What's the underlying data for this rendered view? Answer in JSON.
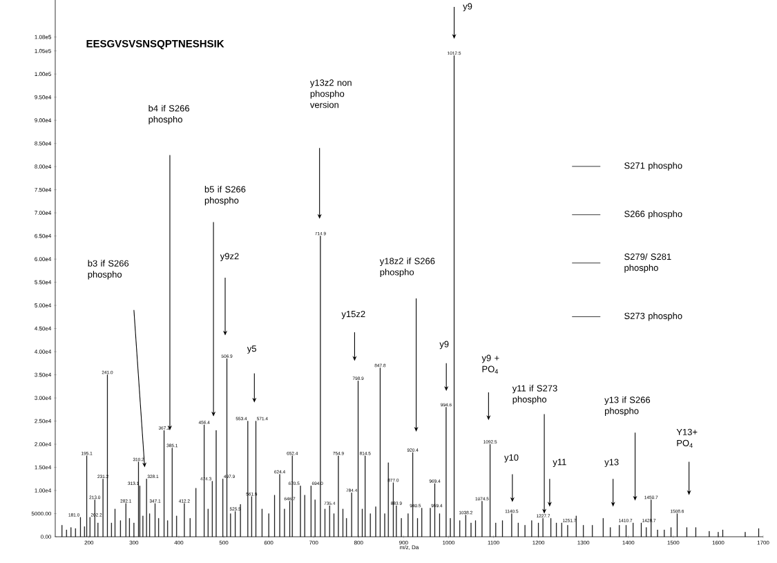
{
  "chart_data": {
    "type": "bar",
    "title": "EESGVSVSNSQPTNESHSIK",
    "xlabel": "m/z, Da",
    "color": "#000000",
    "x": [
      140,
      150,
      160,
      170,
      181.0,
      190,
      195.1,
      202.2,
      213.0,
      220,
      231.2,
      241.0,
      250,
      258,
      270,
      282.1,
      290,
      300,
      310.2,
      313.1,
      320,
      328.1,
      335,
      347.1,
      355,
      367.2,
      375,
      385.1,
      395,
      412.2,
      425,
      438,
      456.4,
      465,
      474.3,
      483,
      497.9,
      506.9,
      515,
      525.5,
      537,
      553.4,
      561.9,
      571.4,
      585,
      600,
      613,
      624.4,
      635,
      646.7,
      652.4,
      670.5,
      680,
      694.0,
      703,
      714.9,
      725,
      735.4,
      745,
      754.9,
      765,
      773,
      784.4,
      798.9,
      808,
      814.5,
      826,
      838,
      847.8,
      858,
      866,
      877.0,
      883.9,
      895,
      910,
      920.4,
      931,
      940.5,
      959.4,
      969.4,
      980,
      994.6,
      1004,
      1012.5,
      1025,
      1038.2,
      1050,
      1060,
      1074.5,
      1092.5,
      1105,
      1120,
      1140.5,
      1155,
      1170,
      1185,
      1200,
      1210,
      1227.7,
      1240,
      1251.7,
      1265,
      1284,
      1300,
      1320,
      1344,
      1360,
      1380,
      1395,
      1410.7,
      1428.7,
      1440,
      1450.7,
      1465,
      1480,
      1495,
      1508.6,
      1530,
      1550,
      1580,
      1600,
      1610,
      1660,
      1690
    ],
    "values": [
      2500,
      1500,
      2000,
      1800,
      4200,
      2200,
      17500,
      4200,
      8000,
      3000,
      12500,
      35000,
      3000,
      6000,
      3500,
      7200,
      4000,
      3000,
      16200,
      11000,
      4500,
      12500,
      5000,
      7200,
      4000,
      23000,
      3500,
      19200,
      4500,
      7200,
      4000,
      10500,
      24200,
      6000,
      12000,
      23000,
      12500,
      38500,
      5000,
      5500,
      7000,
      25000,
      8700,
      25000,
      6000,
      5000,
      9000,
      13500,
      6000,
      7700,
      17500,
      11000,
      9000,
      11000,
      8000,
      65000,
      6000,
      6700,
      5000,
      17500,
      6000,
      4000,
      9500,
      33700,
      6000,
      17500,
      5000,
      6500,
      36500,
      5000,
      16000,
      11700,
      6700,
      4000,
      5000,
      18200,
      4000,
      6200,
      6200,
      11500,
      5000,
      28000,
      4000,
      104000,
      3500,
      4700,
      3000,
      3500,
      7700,
      20000,
      3000,
      3500,
      5000,
      3000,
      2500,
      3500,
      3000,
      4000,
      4000,
      3000,
      3000,
      2500,
      4500,
      2500,
      2500,
      4000,
      2000,
      2500,
      2500,
      3000,
      3000,
      2000,
      8000,
      1500,
      1500,
      2000,
      5000,
      2000,
      2000,
      1200,
      1000,
      1500,
      1000,
      1800
    ],
    "xlim": [
      125,
      1700
    ],
    "xticks": [
      200,
      300,
      400,
      500,
      600,
      700,
      800,
      900,
      1000,
      1100,
      1200,
      1300,
      1400,
      1500,
      1600,
      1700
    ],
    "ylim": [
      0,
      116000
    ],
    "yticks": [
      {
        "value": 0,
        "label": "0.00"
      },
      {
        "value": 5000,
        "label": "5000.00"
      },
      {
        "value": 10000,
        "label": "1.00e4"
      },
      {
        "value": 15000,
        "label": "1.50e4"
      },
      {
        "value": 20000,
        "label": "2.00e4"
      },
      {
        "value": 25000,
        "label": "2.50e4"
      },
      {
        "value": 30000,
        "label": "3.00e4"
      },
      {
        "value": 35000,
        "label": "3.50e4"
      },
      {
        "value": 40000,
        "label": "4.00e4"
      },
      {
        "value": 45000,
        "label": "4.50e4"
      },
      {
        "value": 50000,
        "label": "5.00e4"
      },
      {
        "value": 55000,
        "label": "5.50e4"
      },
      {
        "value": 60000,
        "label": "6.00e4"
      },
      {
        "value": 65000,
        "label": "6.50e4"
      },
      {
        "value": 70000,
        "label": "7.00e4"
      },
      {
        "value": 75000,
        "label": "7.50e4"
      },
      {
        "value": 80000,
        "label": "8.00e4"
      },
      {
        "value": 85000,
        "label": "8.50e4"
      },
      {
        "value": 90000,
        "label": "9.00e4"
      },
      {
        "value": 95000,
        "label": "9.50e4"
      },
      {
        "value": 100000,
        "label": "1.00e5"
      },
      {
        "value": 105000,
        "label": "1.05e5"
      },
      {
        "value": 108000,
        "label": "1.08e5"
      }
    ],
    "annotations": [
      "b3 if S266 phospho",
      "b4 if S266 phospho",
      "b5 if S266 phospho",
      "y9z2",
      "y5",
      "y13z2 non phospho version",
      "y18z2 if S266 phospho",
      "y15z2",
      "y9",
      "y9 + PO$_{4}$",
      "y11 if S273 phospho",
      "y10",
      "y11",
      "y13",
      "y13 if S266 phospho",
      "Y13+ PO$_{4}$",
      "y9",
      {
        "text": "181.0",
        "x": 181.0,
        "y": 4200
      },
      {
        "text": "195.1",
        "x": 195.1,
        "y": 17500
      },
      {
        "text": "202.2",
        "x": 202.2,
        "y": 4200
      },
      {
        "text": "213.0",
        "x": 213.0,
        "y": 8000
      },
      {
        "text": "231.2",
        "x": 231.2,
        "y": 12500
      },
      {
        "text": "241.0",
        "x": 241.0,
        "y": 35000
      },
      {
        "text": "282.1",
        "x": 282.1,
        "y": 7200
      },
      {
        "text": "310.2",
        "x": 310.2,
        "y": 16200
      },
      {
        "text": "313.1",
        "x": 313.1,
        "y": 11000
      },
      {
        "text": "328.1",
        "x": 328.1,
        "y": 12500
      },
      {
        "text": "347.1",
        "x": 347.1,
        "y": 7200
      },
      {
        "text": "367.2",
        "x": 367.2,
        "y": 23000
      },
      {
        "text": "385.1",
        "x": 385.1,
        "y": 19200
      },
      {
        "text": "412.2",
        "x": 412.2,
        "y": 7200
      },
      {
        "text": "456.4",
        "x": 456.4,
        "y": 24200
      },
      {
        "text": "474.3",
        "x": 474.3,
        "y": 12000
      },
      {
        "text": "497.9",
        "x": 497.9,
        "y": 12500
      },
      {
        "text": "506.9",
        "x": 506.9,
        "y": 38500
      },
      {
        "text": "525.5",
        "x": 525.5,
        "y": 5500
      },
      {
        "text": "553.4",
        "x": 553.4,
        "y": 25000
      },
      {
        "text": "561.9",
        "x": 561.9,
        "y": 8700
      },
      {
        "text": "571.4",
        "x": 571.4,
        "y": 25000
      },
      {
        "text": "624.4",
        "x": 624.4,
        "y": 13500
      },
      {
        "text": "646.7",
        "x": 646.7,
        "y": 7700
      },
      {
        "text": "652.4",
        "x": 652.4,
        "y": 17500
      },
      {
        "text": "670.5",
        "x": 670.5,
        "y": 11000
      },
      {
        "text": "694.0",
        "x": 694.0,
        "y": 11000
      },
      {
        "text": "714.9",
        "x": 714.9,
        "y": 65000
      },
      {
        "text": "735.4",
        "x": 735.4,
        "y": 6700
      },
      {
        "text": "754.9",
        "x": 754.9,
        "y": 17500
      },
      {
        "text": "784.4",
        "x": 784.4,
        "y": 9500
      },
      {
        "text": "798.9",
        "x": 798.9,
        "y": 33700
      },
      {
        "text": "814.5",
        "x": 814.5,
        "y": 17500
      },
      {
        "text": "847.8",
        "x": 847.8,
        "y": 36500
      },
      {
        "text": "877.0",
        "x": 877.0,
        "y": 11700
      },
      {
        "text": "883.9",
        "x": 883.9,
        "y": 6700
      },
      {
        "text": "920.4",
        "x": 920.4,
        "y": 18200
      },
      {
        "text": "940.5",
        "x": 940.5,
        "y": 6200
      },
      {
        "text": "959.4",
        "x": 959.4,
        "y": 6200
      },
      {
        "text": "969.4",
        "x": 969.4,
        "y": 11500
      },
      {
        "text": "994.6",
        "x": 994.6,
        "y": 28000
      },
      {
        "text": "1012.5",
        "x": 1012.5,
        "y": 104000
      },
      {
        "text": "1038.2",
        "x": 1038.2,
        "y": 4700
      },
      {
        "text": "1074.5",
        "x": 1074.5,
        "y": 7700
      },
      {
        "text": "1092.5",
        "x": 1092.5,
        "y": 20000
      },
      {
        "text": "1140.5",
        "x": 1140.5,
        "y": 5000
      },
      {
        "text": "1227.7",
        "x": 1227.7,
        "y": 4000
      },
      {
        "text": "1251.7",
        "x": 1251.7,
        "y": 3000
      },
      {
        "text": "1410.7",
        "x": 1410.7,
        "y": 3000
      },
      {
        "text": "1428.7",
        "x": 1428.7,
        "y": 3000
      },
      {
        "text": "1450.7",
        "x": 1450.7,
        "y": 8000
      },
      {
        "text": "1508.6",
        "x": 1508.6,
        "y": 5000
      },
      "S271 phospho",
      "S266 phospho",
      "S279/ S281 phospho",
      "S273 phospho"
    ]
  }
}
